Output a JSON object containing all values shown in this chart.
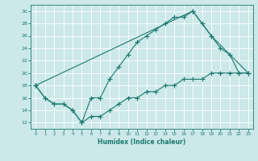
{
  "title": "",
  "xlabel": "Humidex (Indice chaleur)",
  "xlim": [
    -0.5,
    23.5
  ],
  "ylim": [
    11,
    31
  ],
  "xticks": [
    0,
    1,
    2,
    3,
    4,
    5,
    6,
    7,
    8,
    9,
    10,
    11,
    12,
    13,
    14,
    15,
    16,
    17,
    18,
    19,
    20,
    21,
    22,
    23
  ],
  "yticks": [
    12,
    14,
    16,
    18,
    20,
    22,
    24,
    26,
    28,
    30
  ],
  "line_color": "#1a7a6e",
  "bg_color": "#cce8e8",
  "grid_color": "#b0d8d8",
  "line1_x": [
    0,
    1,
    2,
    3,
    4,
    5,
    6,
    7,
    8,
    9,
    10,
    11,
    12,
    13,
    14,
    15,
    16,
    17,
    18,
    19,
    20,
    21,
    22,
    23
  ],
  "line1_y": [
    18,
    16,
    15,
    15,
    14,
    12,
    16,
    16,
    19,
    21,
    23,
    25,
    26,
    27,
    28,
    29,
    29,
    30,
    28,
    26,
    24,
    23,
    20,
    20
  ],
  "line2_x": [
    0,
    1,
    2,
    3,
    4,
    5,
    6,
    7,
    8,
    9,
    10,
    11,
    12,
    13,
    14,
    15,
    16,
    17,
    18,
    19,
    20,
    21,
    22,
    23
  ],
  "line2_y": [
    18,
    16,
    15,
    15,
    14,
    12,
    13,
    13,
    14,
    15,
    16,
    16,
    17,
    17,
    18,
    18,
    19,
    19,
    19,
    20,
    20,
    20,
    20,
    20
  ],
  "line3_x": [
    0,
    17,
    19,
    23
  ],
  "line3_y": [
    18,
    30,
    26,
    20
  ]
}
